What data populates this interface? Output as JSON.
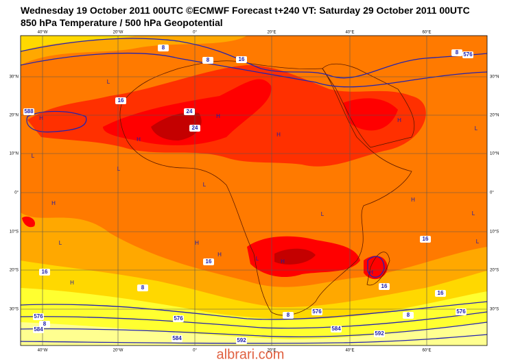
{
  "header": {
    "title": "Wednesday 19 October 2011 00UTC ©ECMWF Forecast t+240 VT: Saturday 29 October 2011 00UTC",
    "subtitle": "850 hPa Temperature / 500 hPa Geopotential"
  },
  "lon_labels": [
    "40°W",
    "20°W",
    "0°",
    "20°E",
    "40°E",
    "60°E"
  ],
  "lat_labels": [
    "30°N",
    "20°N",
    "10°N",
    "0°",
    "10°S",
    "20°S",
    "30°S"
  ],
  "contour_labels": [
    "8",
    "8",
    "16",
    "16",
    "24",
    "24",
    "16",
    "16",
    "8",
    "16",
    "16",
    "16",
    "576",
    "8",
    "588",
    "576",
    "8",
    "584",
    "576",
    "8",
    "576",
    "584",
    "592",
    "8",
    "576",
    "584",
    "592"
  ],
  "pressure_markers": [
    "L",
    "H",
    "H",
    "H",
    "L",
    "L",
    "L",
    "H",
    "L",
    "H",
    "H",
    "L",
    "H",
    "L",
    "H",
    "H",
    "L",
    "H",
    "L",
    "L",
    "H",
    "H"
  ],
  "watermark": "albrari.com"
}
